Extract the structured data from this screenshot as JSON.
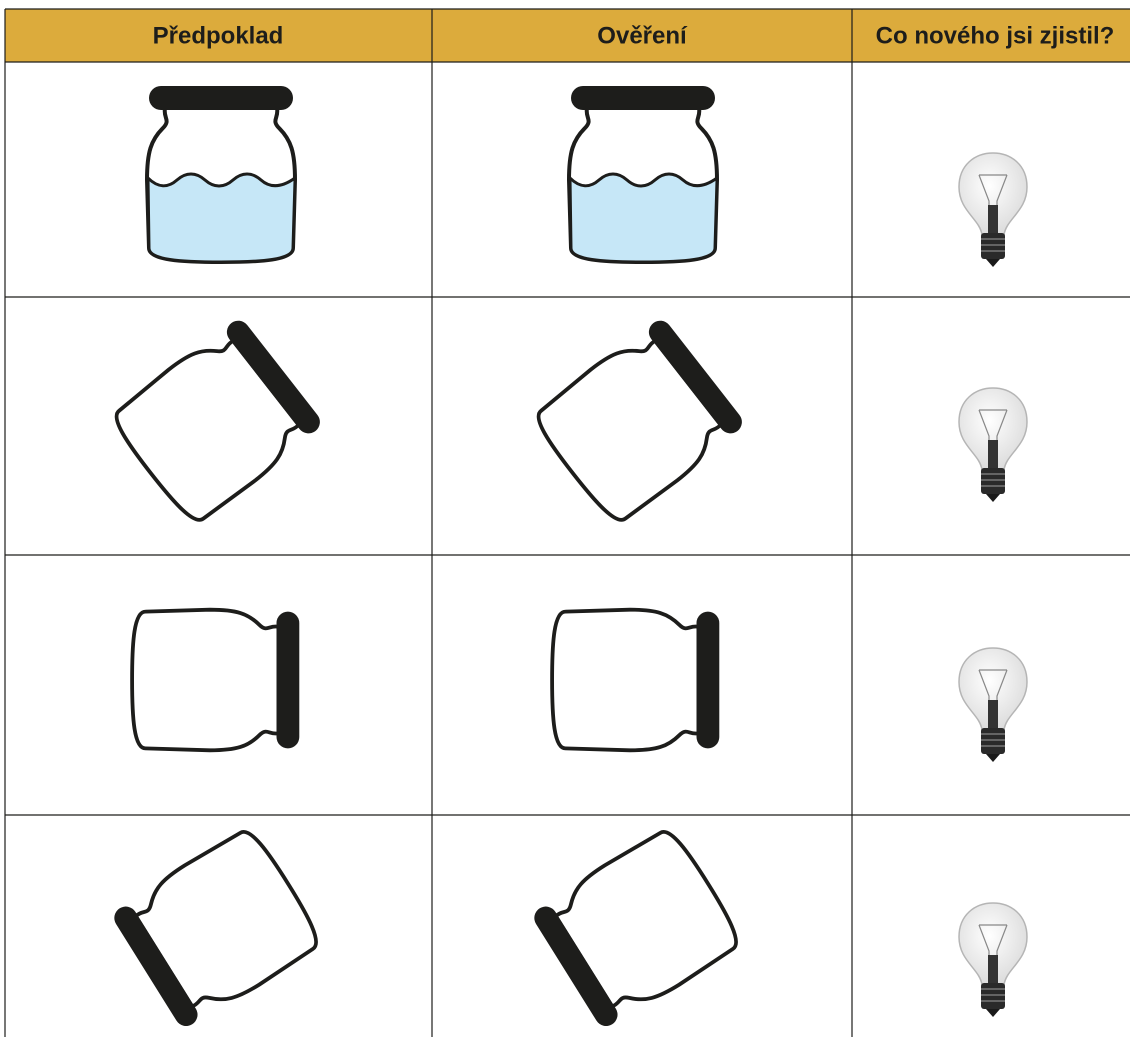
{
  "table": {
    "headers": [
      "Předpoklad",
      "Ověření",
      "Co nového jsi zjistil?"
    ]
  }
}
